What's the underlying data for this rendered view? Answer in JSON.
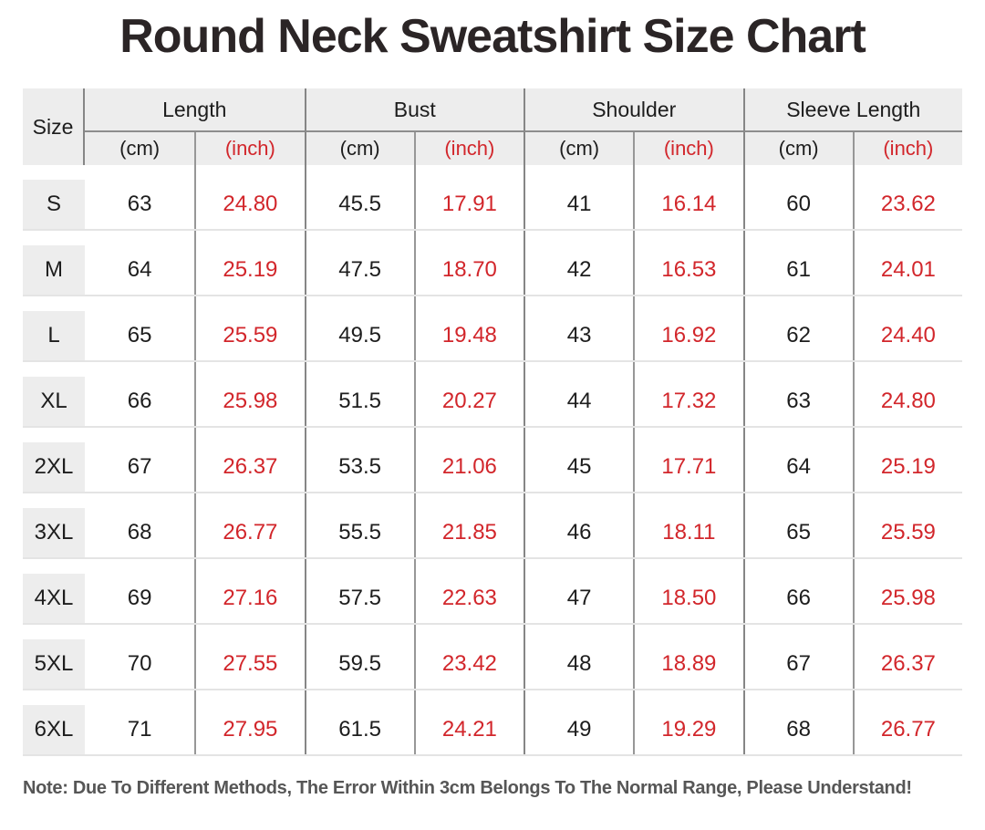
{
  "title": "Round Neck Sweatshirt Size Chart",
  "note": "Note: Due To Different Methods, The Error Within 3cm Belongs To The Normal Range, Please Understand!",
  "colors": {
    "accent_red": "#d2262b",
    "header_bg": "#ededed",
    "size_cell_bg": "#ededed",
    "group_line": "#868686",
    "unit_line": "#979797",
    "row_divider": "#e4e4e4",
    "text": "#1d1d1d",
    "note_text": "#565656"
  },
  "table": {
    "size_header": "Size",
    "groups": [
      {
        "label": "Length"
      },
      {
        "label": "Bust"
      },
      {
        "label": "Shoulder"
      },
      {
        "label": "Sleeve Length"
      }
    ],
    "unit_cm": "(cm)",
    "unit_inch": "(inch)",
    "rows": [
      {
        "size": "S",
        "length_cm": "63",
        "length_in": "24.80",
        "bust_cm": "45.5",
        "bust_in": "17.91",
        "shoulder_cm": "41",
        "shoulder_in": "16.14",
        "sleeve_cm": "60",
        "sleeve_in": "23.62"
      },
      {
        "size": "M",
        "length_cm": "64",
        "length_in": "25.19",
        "bust_cm": "47.5",
        "bust_in": "18.70",
        "shoulder_cm": "42",
        "shoulder_in": "16.53",
        "sleeve_cm": "61",
        "sleeve_in": "24.01"
      },
      {
        "size": "L",
        "length_cm": "65",
        "length_in": "25.59",
        "bust_cm": "49.5",
        "bust_in": "19.48",
        "shoulder_cm": "43",
        "shoulder_in": "16.92",
        "sleeve_cm": "62",
        "sleeve_in": "24.40"
      },
      {
        "size": "XL",
        "length_cm": "66",
        "length_in": "25.98",
        "bust_cm": "51.5",
        "bust_in": "20.27",
        "shoulder_cm": "44",
        "shoulder_in": "17.32",
        "sleeve_cm": "63",
        "sleeve_in": "24.80"
      },
      {
        "size": "2XL",
        "length_cm": "67",
        "length_in": "26.37",
        "bust_cm": "53.5",
        "bust_in": "21.06",
        "shoulder_cm": "45",
        "shoulder_in": "17.71",
        "sleeve_cm": "64",
        "sleeve_in": "25.19"
      },
      {
        "size": "3XL",
        "length_cm": "68",
        "length_in": "26.77",
        "bust_cm": "55.5",
        "bust_in": "21.85",
        "shoulder_cm": "46",
        "shoulder_in": "18.11",
        "sleeve_cm": "65",
        "sleeve_in": "25.59"
      },
      {
        "size": "4XL",
        "length_cm": "69",
        "length_in": "27.16",
        "bust_cm": "57.5",
        "bust_in": "22.63",
        "shoulder_cm": "47",
        "shoulder_in": "18.50",
        "sleeve_cm": "66",
        "sleeve_in": "25.98"
      },
      {
        "size": "5XL",
        "length_cm": "70",
        "length_in": "27.55",
        "bust_cm": "59.5",
        "bust_in": "23.42",
        "shoulder_cm": "48",
        "shoulder_in": "18.89",
        "sleeve_cm": "67",
        "sleeve_in": "26.37"
      },
      {
        "size": "6XL",
        "length_cm": "71",
        "length_in": "27.95",
        "bust_cm": "61.5",
        "bust_in": "24.21",
        "shoulder_cm": "49",
        "shoulder_in": "19.29",
        "sleeve_cm": "68",
        "sleeve_in": "26.77"
      }
    ]
  },
  "chart_data": {
    "type": "table",
    "title": "Round Neck Sweatshirt Size Chart",
    "columns": [
      "Size",
      "Length (cm)",
      "Length (inch)",
      "Bust (cm)",
      "Bust (inch)",
      "Shoulder (cm)",
      "Shoulder (inch)",
      "Sleeve Length (cm)",
      "Sleeve Length (inch)"
    ],
    "rows": [
      [
        "S",
        63,
        24.8,
        45.5,
        17.91,
        41,
        16.14,
        60,
        23.62
      ],
      [
        "M",
        64,
        25.19,
        47.5,
        18.7,
        42,
        16.53,
        61,
        24.01
      ],
      [
        "L",
        65,
        25.59,
        49.5,
        19.48,
        43,
        16.92,
        62,
        24.4
      ],
      [
        "XL",
        66,
        25.98,
        51.5,
        20.27,
        44,
        17.32,
        63,
        24.8
      ],
      [
        "2XL",
        67,
        26.37,
        53.5,
        21.06,
        45,
        17.71,
        64,
        25.19
      ],
      [
        "3XL",
        68,
        26.77,
        55.5,
        21.85,
        46,
        18.11,
        65,
        25.59
      ],
      [
        "4XL",
        69,
        27.16,
        57.5,
        22.63,
        47,
        18.5,
        66,
        25.98
      ],
      [
        "5XL",
        70,
        27.55,
        59.5,
        23.42,
        48,
        18.89,
        67,
        26.37
      ],
      [
        "6XL",
        71,
        27.95,
        61.5,
        24.21,
        49,
        19.29,
        68,
        26.77
      ]
    ],
    "note": "Note: Due To Different Methods, The Error Within 3cm Belongs To The Normal Range, Please Understand!"
  }
}
